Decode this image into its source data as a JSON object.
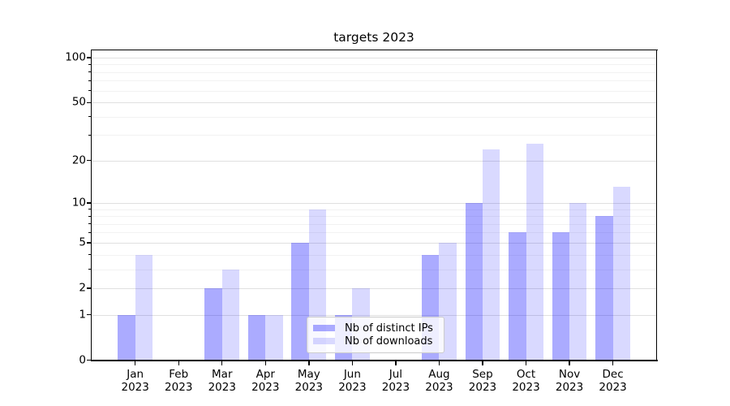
{
  "figure": {
    "background": "#ffffff"
  },
  "chart_data": {
    "type": "bar",
    "title": "targets 2023",
    "xlabel": "",
    "ylabel": "",
    "categories": [
      {
        "month": "Jan",
        "year": "2023"
      },
      {
        "month": "Feb",
        "year": "2023"
      },
      {
        "month": "Mar",
        "year": "2023"
      },
      {
        "month": "Apr",
        "year": "2023"
      },
      {
        "month": "May",
        "year": "2023"
      },
      {
        "month": "Jun",
        "year": "2023"
      },
      {
        "month": "Jul",
        "year": "2023"
      },
      {
        "month": "Aug",
        "year": "2023"
      },
      {
        "month": "Sep",
        "year": "2023"
      },
      {
        "month": "Oct",
        "year": "2023"
      },
      {
        "month": "Nov",
        "year": "2023"
      },
      {
        "month": "Dec",
        "year": "2023"
      }
    ],
    "series": [
      {
        "name": "Nb of distinct IPs",
        "color": "rgba(0,0,255,0.33)",
        "values": [
          1,
          0,
          2,
          1,
          5,
          1,
          0,
          4,
          10,
          6,
          6,
          8
        ]
      },
      {
        "name": "Nb of downloads",
        "color": "rgba(0,0,255,0.15)",
        "values": [
          4,
          0,
          3,
          1,
          9,
          2,
          0,
          5,
          24,
          26,
          10,
          13
        ]
      }
    ],
    "yscale": "symlog",
    "ylim": [
      0,
      113
    ],
    "y_major_ticks": [
      0,
      1,
      2,
      5,
      10,
      20,
      50,
      100
    ],
    "y_minor_ticks": [
      3,
      4,
      6,
      7,
      8,
      9,
      30,
      40,
      60,
      70,
      80,
      90
    ],
    "grid": "horizontal",
    "legend_position": "lower center",
    "colors": {
      "axis": "#000000",
      "grid_major": "#e0e0e0",
      "grid_minor": "#f2f2f2",
      "text": "#000000"
    }
  }
}
